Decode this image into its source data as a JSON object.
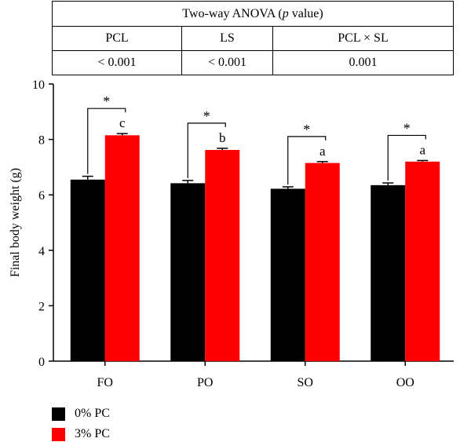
{
  "table": {
    "title_main": "Two-way ANOVA (",
    "title_italic": "p",
    "title_end": " value)",
    "headers": [
      "PCL",
      "LS",
      "PCL × SL"
    ],
    "values": [
      "< 0.001",
      "< 0.001",
      "0.001"
    ]
  },
  "colors": {
    "series_0": "#000000",
    "series_1": "#ff0000"
  },
  "chart_data": {
    "type": "bar",
    "ylabel": "Final body weight (g)",
    "xlabel": "",
    "ylim": [
      0,
      10
    ],
    "yticks": [
      0,
      2,
      4,
      6,
      8,
      10
    ],
    "categories": [
      "FO",
      "PO",
      "SO",
      "OO"
    ],
    "series": [
      {
        "name": "0% PC",
        "values": [
          6.55,
          6.42,
          6.22,
          6.35
        ],
        "errors": [
          0.12,
          0.1,
          0.07,
          0.08
        ]
      },
      {
        "name": "3% PC",
        "values": [
          8.15,
          7.62,
          7.15,
          7.2
        ],
        "errors": [
          0.06,
          0.06,
          0.05,
          0.04
        ]
      }
    ],
    "significance_labels": [
      "c",
      "b",
      "a",
      "a"
    ],
    "pairwise_marks": [
      "*",
      "*",
      "*",
      "*"
    ],
    "legend_position": "bottom-left"
  }
}
